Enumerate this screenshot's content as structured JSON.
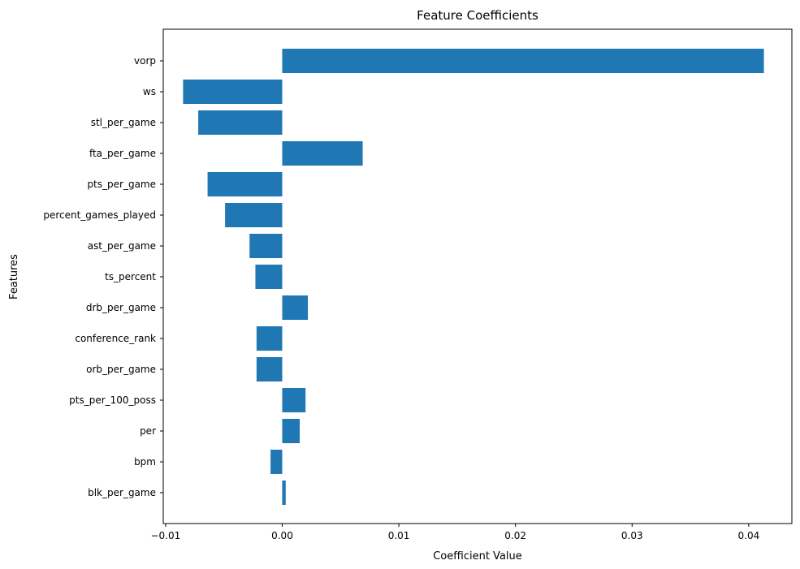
{
  "chart_data": {
    "type": "bar",
    "orientation": "horizontal",
    "title": "Feature Coefficients",
    "xlabel": "Coefficient Value",
    "ylabel": "Features",
    "categories": [
      "vorp",
      "ws",
      "stl_per_game",
      "fta_per_game",
      "pts_per_game",
      "percent_games_played",
      "ast_per_game",
      "ts_percent",
      "drb_per_game",
      "conference_rank",
      "orb_per_game",
      "pts_per_100_poss",
      "per",
      "bpm",
      "blk_per_game"
    ],
    "values": [
      0.0413,
      -0.0085,
      -0.0072,
      0.0069,
      -0.0064,
      -0.0049,
      -0.0028,
      -0.0023,
      0.0022,
      -0.0022,
      -0.0022,
      0.002,
      0.0015,
      -0.001,
      0.0003
    ],
    "xlim": [
      -0.0102,
      0.0437
    ],
    "xticks": [
      -0.01,
      0.0,
      0.01,
      0.02,
      0.03,
      0.04
    ],
    "xtick_labels": [
      "−0.01",
      "0.00",
      "0.01",
      "0.02",
      "0.03",
      "0.04"
    ],
    "bar_color": "#1f77b4",
    "grid": false,
    "legend": null
  }
}
